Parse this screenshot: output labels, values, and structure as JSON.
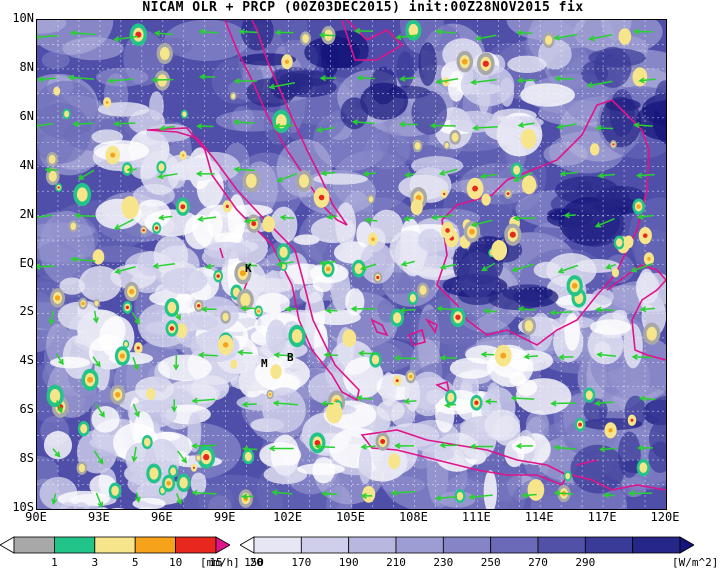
{
  "title": "NICAM OLR + PRCP (00Z03DEC2015) init:00Z28NOV2015 fix",
  "axes": {
    "y_ticks": [
      "10N",
      "8N",
      "6N",
      "4N",
      "2N",
      "EQ",
      "2S",
      "4S",
      "6S",
      "8S",
      "10S"
    ],
    "x_ticks": [
      "90E",
      "93E",
      "96E",
      "99E",
      "102E",
      "105E",
      "108E",
      "111E",
      "114E",
      "117E",
      "120E"
    ]
  },
  "colorbars": {
    "precip": {
      "labels": [
        "1",
        "3",
        "5",
        "10",
        "15",
        "20"
      ],
      "unit": "[mm/h]",
      "colors": [
        "#ffffff",
        "#a8a8a8",
        "#22c48a",
        "#f6e58b",
        "#f7a21b",
        "#e8271f",
        "#e0148a"
      ]
    },
    "olr": {
      "labels": [
        "150",
        "170",
        "190",
        "210",
        "230",
        "250",
        "270",
        "290"
      ],
      "unit": "[W/m^2]",
      "colors": [
        "#ffffff",
        "#e6e6f4",
        "#cfcfeb",
        "#b7b7df",
        "#9d9dd3",
        "#8484c6",
        "#6a6ab8",
        "#5151a8",
        "#3a3a98",
        "#262688",
        "#14147a"
      ]
    }
  },
  "annotations": {
    "city_k": "K",
    "city_m": "M",
    "city_b": "B"
  },
  "colors": {
    "coastline": "#e0148a",
    "wind_vector": "#27d22f",
    "grid": "#ffffff"
  }
}
